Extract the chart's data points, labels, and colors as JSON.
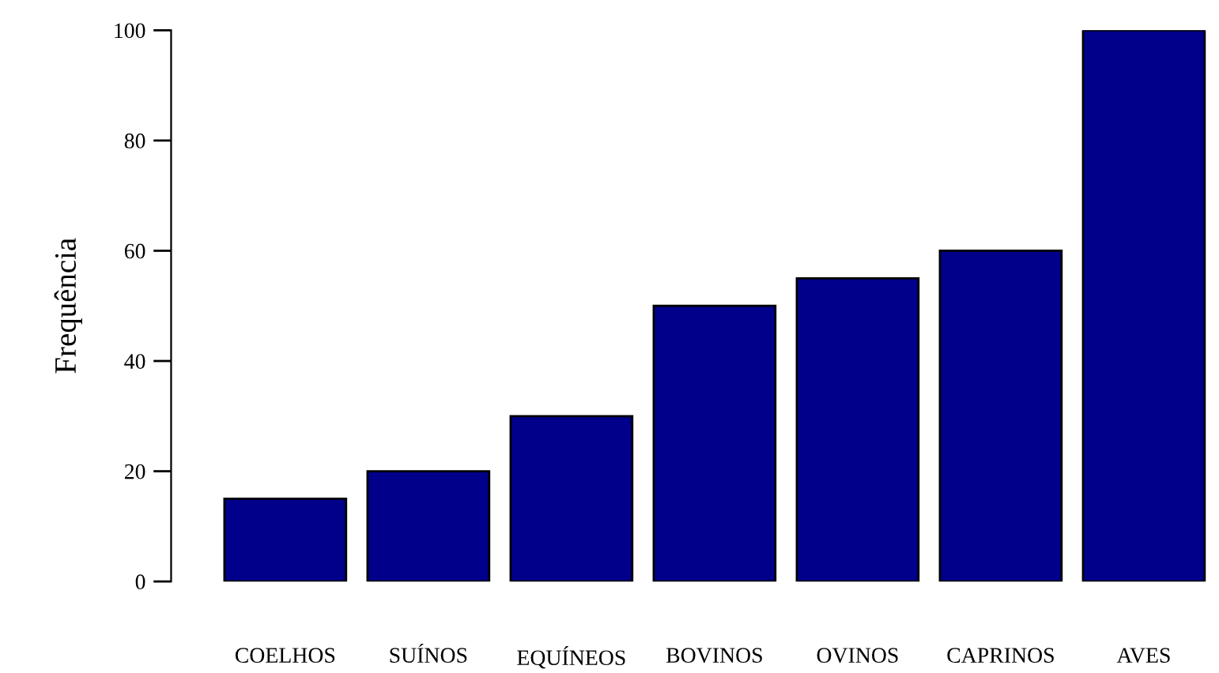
{
  "chart_data": {
    "type": "bar",
    "ylabel": "Frequência",
    "categories": [
      "COELHOS",
      "SUÍNOS",
      "EQUÍNEOS",
      "BOVINOS",
      "OVINOS",
      "CAPRINOS",
      "AVES"
    ],
    "values": [
      15,
      20,
      30,
      50,
      55,
      60,
      100
    ],
    "color": "#00008b",
    "ylim": [
      0,
      100
    ],
    "yticks": [
      0,
      20,
      40,
      60,
      80,
      100
    ],
    "grid": false,
    "legend": false
  }
}
